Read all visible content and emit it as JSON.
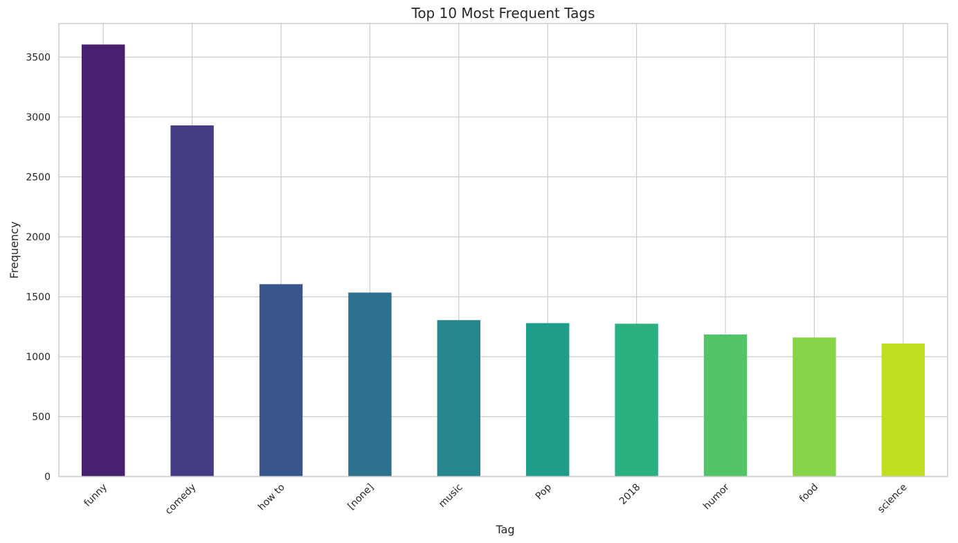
{
  "chart_data": {
    "type": "bar",
    "title": "Top 10 Most Frequent Tags",
    "xlabel": "Tag",
    "ylabel": "Frequency",
    "categories": [
      "funny",
      "comedy",
      "how to",
      "[none]",
      "music",
      "Pop",
      "2018",
      "humor",
      "food",
      "science"
    ],
    "values": [
      3605,
      2930,
      1605,
      1535,
      1305,
      1280,
      1275,
      1185,
      1160,
      1110
    ],
    "colors": [
      "#482070",
      "#443c83",
      "#39568b",
      "#2c718e",
      "#25868d",
      "#1f9c8a",
      "#2bb07f",
      "#52c368",
      "#86d549",
      "#c0df22"
    ],
    "ylim": [
      0,
      3780
    ],
    "yticks": [
      0,
      500,
      1000,
      1500,
      2000,
      2500,
      3000,
      3500
    ],
    "grid": true,
    "legend": "none"
  }
}
